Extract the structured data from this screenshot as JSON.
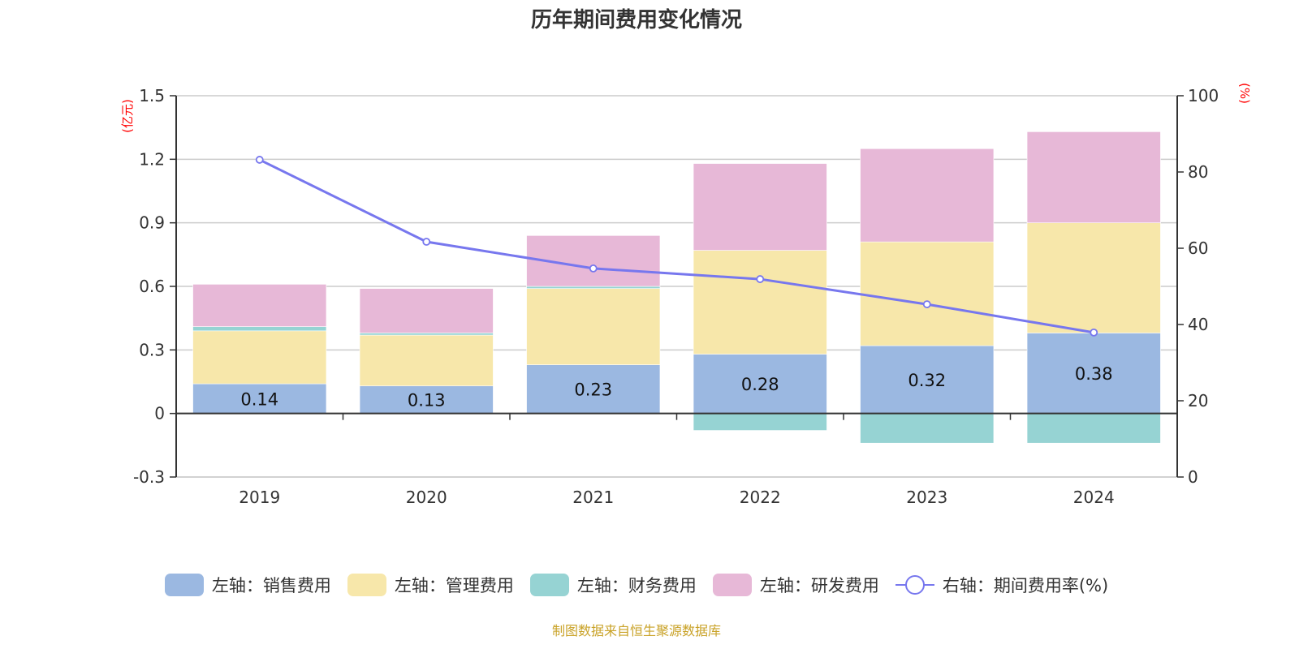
{
  "title": "历年期间费用变化情况",
  "footer": "制图数据来自恒生聚源数据库",
  "chart_data": {
    "type": "bar",
    "stacked": true,
    "title": "历年期间费用变化情况",
    "categories": [
      "2019",
      "2020",
      "2021",
      "2022",
      "2023",
      "2024"
    ],
    "left_axis": {
      "unit": "(亿元)",
      "ylim": [
        -0.3,
        1.5
      ],
      "ticks": [
        "1.5",
        "1.2",
        "0.9",
        "0.6",
        "0.3",
        "0",
        "-0.3"
      ],
      "tick_values": [
        1.5,
        1.2,
        0.9,
        0.6,
        0.3,
        0,
        -0.3
      ]
    },
    "right_axis": {
      "unit": "(%)",
      "ylim": [
        0,
        100
      ],
      "ticks": [
        "100",
        "80",
        "60",
        "40",
        "20",
        "0"
      ],
      "tick_values": [
        100,
        80,
        60,
        40,
        20,
        0
      ]
    },
    "grid": true,
    "legend_position": "bottom",
    "series": [
      {
        "name": "左轴：销售费用",
        "type": "bar",
        "axis": "left",
        "color": "#9bb8e1",
        "values": [
          0.14,
          0.13,
          0.23,
          0.28,
          0.32,
          0.38
        ],
        "labels": [
          "0.14",
          "0.13",
          "0.23",
          "0.28",
          "0.32",
          "0.38"
        ]
      },
      {
        "name": "左轴：管理费用",
        "type": "bar",
        "axis": "left",
        "color": "#f7e7aa",
        "values": [
          0.25,
          0.24,
          0.36,
          0.49,
          0.49,
          0.52
        ]
      },
      {
        "name": "左轴：财务费用",
        "type": "bar",
        "axis": "left",
        "color": "#96d3d3",
        "values": [
          0.02,
          0.01,
          0.01,
          -0.08,
          -0.14,
          -0.14
        ]
      },
      {
        "name": "左轴：研发费用",
        "type": "bar",
        "axis": "left",
        "color": "#e7b8d7",
        "values": [
          0.2,
          0.21,
          0.24,
          0.41,
          0.44,
          0.43
        ]
      },
      {
        "name": "右轴：期间费用率(%)",
        "type": "line",
        "axis": "right",
        "color": "#7777ee",
        "values": [
          83.2,
          61.7,
          54.7,
          51.9,
          45.3,
          37.9
        ]
      }
    ]
  }
}
